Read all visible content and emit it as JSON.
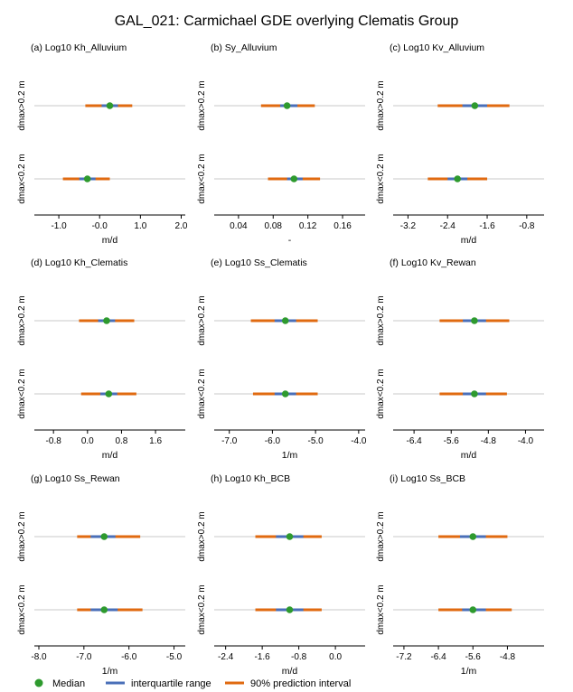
{
  "title": "GAL_021: Carmichael GDE overlying Clematis Group",
  "row_labels": [
    "dmax>0.2 m",
    "dmax<0.2 m"
  ],
  "legend": {
    "median": "Median",
    "iqr": "interquartile range",
    "pi90": "90% prediction interval"
  },
  "colors": {
    "median": "#2e9a2e",
    "iqr": "#4a6fb8",
    "pi90": "#e06a10",
    "zero_line": "#c8c8c8",
    "axis": "#000000"
  },
  "chart_data": [
    {
      "type": "interval",
      "title": "(a) Log10 Kh_Alluvium",
      "xlabel": "m/d",
      "xlim": [
        -1.6,
        2.1
      ],
      "ticks": [
        -1.0,
        -0.0,
        1.0,
        2.0
      ],
      "tick_labels": [
        "-1.0",
        "-0.0",
        "1.0",
        "2.0"
      ],
      "rows": [
        {
          "label": "dmax>0.2 m",
          "median": 0.25,
          "q25": 0.05,
          "q75": 0.45,
          "p5": -0.35,
          "p95": 0.8
        },
        {
          "label": "dmax<0.2 m",
          "median": -0.3,
          "q25": -0.5,
          "q75": -0.1,
          "p5": -0.9,
          "p95": 0.25
        }
      ]
    },
    {
      "type": "interval",
      "title": "(b)  Sy_Alluvium",
      "xlabel": "-",
      "xlim": [
        0.012,
        0.186
      ],
      "ticks": [
        0.04,
        0.08,
        0.12,
        0.16
      ],
      "tick_labels": [
        "0.04",
        "0.08",
        "0.12",
        "0.16"
      ],
      "rows": [
        {
          "label": "dmax>0.2 m",
          "median": 0.096,
          "q25": 0.088,
          "q75": 0.108,
          "p5": 0.066,
          "p95": 0.128
        },
        {
          "label": "dmax<0.2 m",
          "median": 0.104,
          "q25": 0.096,
          "q75": 0.114,
          "p5": 0.074,
          "p95": 0.134
        }
      ]
    },
    {
      "type": "interval",
      "title": "(c) Log10 Kv_Alluvium",
      "xlabel": "m/d",
      "xlim": [
        -3.5,
        -0.45
      ],
      "ticks": [
        -3.2,
        -2.4,
        -1.6,
        -0.8
      ],
      "tick_labels": [
        "-3.2",
        "-2.4",
        "-1.6",
        "-0.8"
      ],
      "rows": [
        {
          "label": "dmax>0.2 m",
          "median": -1.85,
          "q25": -2.1,
          "q75": -1.6,
          "p5": -2.6,
          "p95": -1.15
        },
        {
          "label": "dmax<0.2 m",
          "median": -2.2,
          "q25": -2.4,
          "q75": -2.0,
          "p5": -2.8,
          "p95": -1.6
        }
      ]
    },
    {
      "type": "interval",
      "title": "(d) Log10 Kh_Clematis",
      "xlabel": "m/d",
      "xlim": [
        -1.25,
        2.3
      ],
      "ticks": [
        -0.8,
        0.0,
        0.8,
        1.6
      ],
      "tick_labels": [
        "-0.8",
        "0.0",
        "0.8",
        "1.6"
      ],
      "rows": [
        {
          "label": "dmax>0.2 m",
          "median": 0.45,
          "q25": 0.25,
          "q75": 0.65,
          "p5": -0.2,
          "p95": 1.1
        },
        {
          "label": "dmax<0.2 m",
          "median": 0.5,
          "q25": 0.3,
          "q75": 0.7,
          "p5": -0.15,
          "p95": 1.15
        }
      ]
    },
    {
      "type": "interval",
      "title": "(e) Log10 Ss_Clematis",
      "xlabel": "1/m",
      "xlim": [
        -7.35,
        -3.85
      ],
      "ticks": [
        -7.0,
        -6.0,
        -5.0,
        -4.0
      ],
      "tick_labels": [
        "-7.0",
        "-6.0",
        "-5.0",
        "-4.0"
      ],
      "rows": [
        {
          "label": "dmax>0.2 m",
          "median": -5.7,
          "q25": -5.95,
          "q75": -5.45,
          "p5": -6.5,
          "p95": -4.95
        },
        {
          "label": "dmax<0.2 m",
          "median": -5.7,
          "q25": -5.95,
          "q75": -5.45,
          "p5": -6.45,
          "p95": -4.95
        }
      ]
    },
    {
      "type": "interval",
      "title": "(f) Log10 Kv_Rewan",
      "xlabel": "m/d",
      "xlim": [
        -6.85,
        -3.6
      ],
      "ticks": [
        -6.4,
        -5.6,
        -4.8,
        -4.0
      ],
      "tick_labels": [
        "-6.4",
        "-5.6",
        "-4.8",
        "-4.0"
      ],
      "rows": [
        {
          "label": "dmax>0.2 m",
          "median": -5.1,
          "q25": -5.35,
          "q75": -4.85,
          "p5": -5.85,
          "p95": -4.35
        },
        {
          "label": "dmax<0.2 m",
          "median": -5.1,
          "q25": -5.35,
          "q75": -4.85,
          "p5": -5.85,
          "p95": -4.4
        }
      ]
    },
    {
      "type": "interval",
      "title": "(g) Log10 Ss_Rewan",
      "xlabel": "1/m",
      "xlim": [
        -8.1,
        -4.75
      ],
      "ticks": [
        -8.0,
        -7.0,
        -6.0,
        -5.0
      ],
      "tick_labels": [
        "-8.0",
        "-7.0",
        "-6.0",
        "-5.0"
      ],
      "rows": [
        {
          "label": "dmax>0.2 m",
          "median": -6.55,
          "q25": -6.85,
          "q75": -6.3,
          "p5": -7.15,
          "p95": -5.75
        },
        {
          "label": "dmax<0.2 m",
          "median": -6.55,
          "q25": -6.85,
          "q75": -6.25,
          "p5": -7.15,
          "p95": -5.7
        }
      ]
    },
    {
      "type": "interval",
      "title": "(h) Log10 Kh_BCB",
      "xlabel": "m/d",
      "xlim": [
        -2.65,
        0.65
      ],
      "ticks": [
        -2.4,
        -1.6,
        -0.8,
        0.0
      ],
      "tick_labels": [
        "-2.4",
        "-1.6",
        "-0.8",
        "0.0"
      ],
      "rows": [
        {
          "label": "dmax>0.2 m",
          "median": -1.0,
          "q25": -1.3,
          "q75": -0.7,
          "p5": -1.75,
          "p95": -0.3
        },
        {
          "label": "dmax<0.2 m",
          "median": -1.0,
          "q25": -1.3,
          "q75": -0.7,
          "p5": -1.75,
          "p95": -0.3
        }
      ]
    },
    {
      "type": "interval",
      "title": "(i) Log10 Ss_BCB",
      "xlabel": "1/m",
      "xlim": [
        -7.45,
        -3.95
      ],
      "ticks": [
        -7.2,
        -6.4,
        -5.6,
        -4.8
      ],
      "tick_labels": [
        "-7.2",
        "-6.4",
        "-5.6",
        "-4.8"
      ],
      "rows": [
        {
          "label": "dmax>0.2 m",
          "median": -5.6,
          "q25": -5.9,
          "q75": -5.3,
          "p5": -6.4,
          "p95": -4.8
        },
        {
          "label": "dmax<0.2 m",
          "median": -5.6,
          "q25": -5.85,
          "q75": -5.3,
          "p5": -6.4,
          "p95": -4.7
        }
      ]
    }
  ]
}
